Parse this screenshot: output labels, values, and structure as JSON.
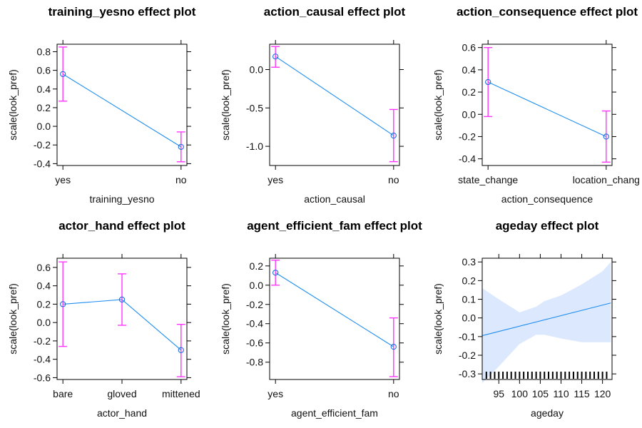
{
  "figure": {
    "colors": {
      "line": "#1f8ef1",
      "point": "#1f6fe0",
      "error_bar": "#ff36ff",
      "ci_band": "#dce8fd",
      "rug": "#000000"
    }
  },
  "chart_data": [
    {
      "type": "line",
      "title": "training_yesno effect plot",
      "xlabel": "training_yesno",
      "ylabel": "scale(look_pref)",
      "categories": [
        "yes",
        "no"
      ],
      "values": [
        0.56,
        -0.22
      ],
      "lower": [
        0.27,
        -0.38
      ],
      "upper": [
        0.85,
        -0.06
      ],
      "ylim": [
        -0.42,
        0.88
      ],
      "yticks": [
        "-0.4",
        "-0.2",
        "0.0",
        "0.2",
        "0.4",
        "0.6",
        "0.8"
      ],
      "grid": false
    },
    {
      "type": "line",
      "title": "action_causal effect plot",
      "xlabel": "action_causal",
      "ylabel": "scale(look_pref)",
      "categories": [
        "yes",
        "no"
      ],
      "values": [
        0.17,
        -0.86
      ],
      "lower": [
        0.03,
        -1.2
      ],
      "upper": [
        0.3,
        -0.52
      ],
      "ylim": [
        -1.25,
        0.33
      ],
      "yticks": [
        "-1.0",
        "-0.5",
        "0.0"
      ],
      "grid": false
    },
    {
      "type": "line",
      "title": "action_consequence effect plot",
      "xlabel": "action_consequence",
      "ylabel": "scale(look_pref)",
      "categories": [
        "state_change",
        "location_chang"
      ],
      "values": [
        0.29,
        -0.2
      ],
      "lower": [
        -0.02,
        -0.43
      ],
      "upper": [
        0.6,
        0.03
      ],
      "ylim": [
        -0.46,
        0.63
      ],
      "yticks": [
        "-0.4",
        "-0.2",
        "0.0",
        "0.2",
        "0.4",
        "0.6"
      ],
      "grid": false
    },
    {
      "type": "line",
      "title": "actor_hand effect plot",
      "xlabel": "actor_hand",
      "ylabel": "scale(look_pref)",
      "categories": [
        "bare",
        "gloved",
        "mittened"
      ],
      "values": [
        0.2,
        0.25,
        -0.3
      ],
      "lower": [
        -0.26,
        -0.03,
        -0.59
      ],
      "upper": [
        0.66,
        0.53,
        -0.02
      ],
      "ylim": [
        -0.62,
        0.7
      ],
      "yticks": [
        "-0.6",
        "-0.4",
        "-0.2",
        "0.0",
        "0.2",
        "0.4",
        "0.6"
      ],
      "grid": false
    },
    {
      "type": "line",
      "title": "agent_efficient_fam effect plot",
      "xlabel": "agent_efficient_fam",
      "ylabel": "scale(look_pref)",
      "categories": [
        "yes",
        "no"
      ],
      "values": [
        0.13,
        -0.64
      ],
      "lower": [
        0.0,
        -0.95
      ],
      "upper": [
        0.26,
        -0.34
      ],
      "ylim": [
        -0.98,
        0.28
      ],
      "yticks": [
        "-0.8",
        "-0.6",
        "-0.4",
        "-0.2",
        "0.0",
        "0.2"
      ],
      "grid": false
    },
    {
      "type": "area",
      "title": "ageday effect plot",
      "xlabel": "ageday",
      "ylabel": "scale(look_pref)",
      "x": [
        91,
        122
      ],
      "values": [
        -0.095,
        0.08
      ],
      "ci_x": [
        91,
        95,
        100,
        104,
        106,
        110,
        115,
        120,
        122
      ],
      "ci_lower": [
        -0.35,
        -0.26,
        -0.14,
        -0.09,
        -0.09,
        -0.11,
        -0.13,
        -0.13,
        -0.13
      ],
      "ci_upper": [
        0.16,
        0.1,
        0.03,
        0.06,
        0.09,
        0.12,
        0.18,
        0.25,
        0.3
      ],
      "rug": [
        92,
        93,
        94,
        95,
        96,
        97,
        98,
        99,
        100,
        101,
        102,
        103,
        104,
        105,
        106,
        107,
        108,
        109,
        110,
        111,
        112,
        113,
        114,
        115,
        116,
        117,
        118,
        119,
        120,
        121
      ],
      "xlim": [
        91,
        122.3
      ],
      "ylim": [
        -0.33,
        0.32
      ],
      "xticks": [
        "95",
        "100",
        "105",
        "110",
        "115",
        "120"
      ],
      "yticks": [
        "-0.3",
        "-0.2",
        "-0.1",
        "0.0",
        "0.1",
        "0.2",
        "0.3"
      ],
      "grid": false
    }
  ]
}
